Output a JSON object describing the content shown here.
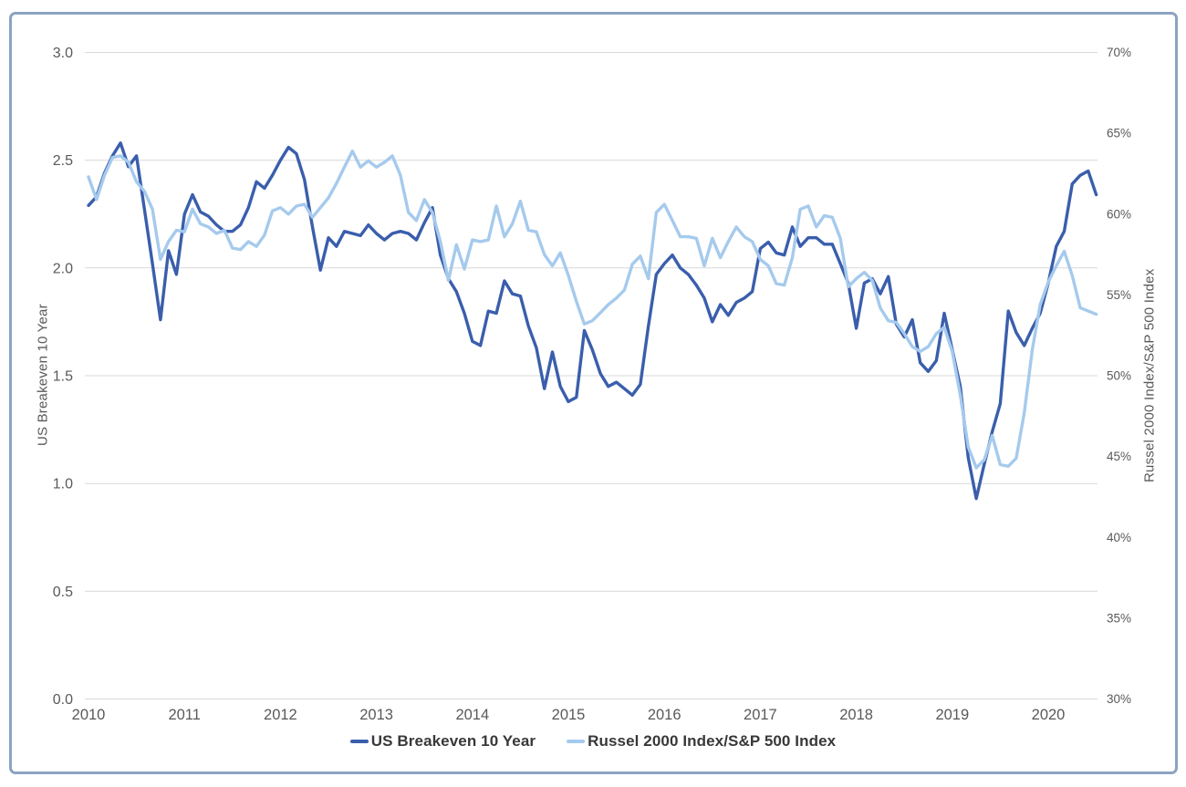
{
  "chart_data": {
    "type": "line",
    "title": "",
    "x_axis": {
      "unit": "month",
      "start": "2010-01",
      "end": "2020-07",
      "tick_labels": [
        "2010",
        "2011",
        "2012",
        "2013",
        "2014",
        "2015",
        "2016",
        "2017",
        "2018",
        "2019",
        "2020"
      ]
    },
    "left_axis": {
      "title": "US Breakeven 10 Year",
      "min": 0.0,
      "max": 3.0,
      "step": 0.5,
      "tick_labels": [
        "0.0",
        "0.5",
        "1.0",
        "1.5",
        "2.0",
        "2.5",
        "3.0"
      ]
    },
    "right_axis": {
      "title": "Russel 2000 Index/S&P 500 Index",
      "min": 30,
      "max": 70,
      "step": 5,
      "tick_labels": [
        "30%",
        "35%",
        "40%",
        "45%",
        "50%",
        "55%",
        "60%",
        "65%",
        "70%"
      ]
    },
    "grid": "horizontal",
    "legend_position": "bottom-center",
    "series": [
      {
        "name": "US Breakeven 10 Year",
        "axis": "left",
        "color": "#3a5eac",
        "stroke_width": 3.4,
        "values": [
          2.29,
          2.33,
          2.44,
          2.52,
          2.58,
          2.47,
          2.52,
          2.27,
          2.02,
          1.76,
          2.08,
          1.97,
          2.25,
          2.34,
          2.26,
          2.24,
          2.2,
          2.17,
          2.17,
          2.2,
          2.28,
          2.4,
          2.37,
          2.43,
          2.5,
          2.56,
          2.53,
          2.41,
          2.19,
          1.99,
          2.14,
          2.1,
          2.17,
          2.16,
          2.15,
          2.2,
          2.16,
          2.13,
          2.16,
          2.17,
          2.16,
          2.13,
          2.21,
          2.28,
          2.06,
          1.95,
          1.89,
          1.79,
          1.66,
          1.64,
          1.8,
          1.79,
          1.94,
          1.88,
          1.87,
          1.73,
          1.63,
          1.44,
          1.61,
          1.45,
          1.38,
          1.4,
          1.71,
          1.62,
          1.51,
          1.45,
          1.47,
          1.44,
          1.41,
          1.46,
          1.73,
          1.97,
          2.02,
          2.06,
          2.0,
          1.97,
          1.92,
          1.86,
          1.75,
          1.83,
          1.78,
          1.84,
          1.86,
          1.89,
          2.09,
          2.12,
          2.07,
          2.06,
          2.19,
          2.1,
          2.14,
          2.14,
          2.11,
          2.11,
          2.02,
          1.93,
          1.72,
          1.93,
          1.95,
          1.88,
          1.96,
          1.74,
          1.68,
          1.76,
          1.56,
          1.52,
          1.57,
          1.79,
          1.62,
          1.45,
          1.12,
          0.93,
          1.09,
          1.24,
          1.37,
          1.8,
          1.7,
          1.64,
          1.72,
          1.79,
          1.93,
          2.1,
          2.17,
          2.39,
          2.43,
          2.45,
          2.34
        ]
      },
      {
        "name": "Russel 2000 Index/S&P 500 Index",
        "axis": "right",
        "color": "#a5caed",
        "stroke_width": 3.4,
        "values": [
          62.3,
          60.9,
          62.4,
          63.5,
          63.6,
          63.2,
          62.0,
          61.4,
          60.3,
          57.2,
          58.3,
          59.0,
          58.9,
          60.3,
          59.4,
          59.2,
          58.8,
          59.0,
          57.9,
          57.8,
          58.3,
          58.0,
          58.7,
          60.2,
          60.4,
          60.0,
          60.5,
          60.6,
          59.8,
          60.4,
          61.0,
          61.9,
          62.9,
          63.9,
          62.9,
          63.3,
          62.9,
          63.2,
          63.6,
          62.4,
          60.1,
          59.6,
          60.9,
          60.1,
          58.3,
          55.9,
          58.1,
          56.6,
          58.4,
          58.3,
          58.4,
          60.5,
          58.6,
          59.4,
          60.8,
          59.0,
          58.9,
          57.5,
          56.8,
          57.6,
          56.2,
          54.6,
          53.2,
          53.4,
          53.9,
          54.4,
          54.8,
          55.3,
          56.9,
          57.4,
          56.0,
          60.1,
          60.6,
          59.6,
          58.6,
          58.6,
          58.5,
          56.8,
          58.5,
          57.3,
          58.3,
          59.2,
          58.6,
          58.3,
          57.2,
          56.8,
          55.7,
          55.6,
          57.3,
          60.3,
          60.5,
          59.2,
          59.9,
          59.8,
          58.5,
          55.5,
          56.0,
          56.4,
          55.9,
          54.2,
          53.4,
          53.3,
          52.6,
          51.8,
          51.5,
          51.8,
          52.6,
          53.0,
          51.5,
          48.8,
          45.6,
          44.3,
          44.8,
          46.3,
          44.5,
          44.4,
          44.9,
          47.7,
          51.6,
          54.4,
          55.8,
          56.8,
          57.7,
          56.2,
          54.2,
          54.0,
          53.8
        ]
      }
    ]
  },
  "styles": {
    "background": "#ffffff",
    "frame_border_color": "#8ba3c1",
    "grid_color": "#d9d9d9",
    "tick_label_color": "#595959",
    "legend_text_color": "#383838",
    "series_dark_blue": "#3a5eac",
    "series_light_blue": "#a5caed"
  }
}
